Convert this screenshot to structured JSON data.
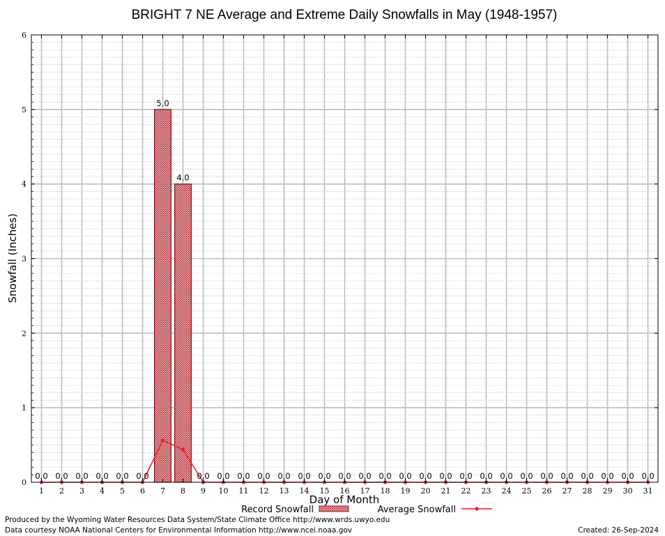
{
  "chart_data": {
    "type": "bar",
    "title": "BRIGHT 7 NE Average and Extreme Daily Snowfalls in May (1948-1957)",
    "xlabel": "Day of Month",
    "ylabel": "Snowfall (Inches)",
    "ylim": [
      0,
      6
    ],
    "y_major_step": 1,
    "y_minor_step": 0.1,
    "grid": true,
    "legend_position": "bottom",
    "categories": [
      "1",
      "2",
      "3",
      "4",
      "5",
      "6",
      "7",
      "8",
      "9",
      "10",
      "11",
      "12",
      "13",
      "14",
      "15",
      "16",
      "17",
      "18",
      "19",
      "20",
      "21",
      "22",
      "23",
      "24",
      "25",
      "26",
      "27",
      "28",
      "29",
      "30",
      "31"
    ],
    "series": [
      {
        "name": "Record Snowfall",
        "type": "bar",
        "color": "#c0282d",
        "values": [
          0,
          0,
          0,
          0,
          0,
          0,
          5.0,
          4.0,
          0,
          0,
          0,
          0,
          0,
          0,
          0,
          0,
          0,
          0,
          0,
          0,
          0,
          0,
          0,
          0,
          0,
          0,
          0,
          0,
          0,
          0,
          0
        ],
        "labels": [
          "0.0",
          "0.0",
          "0.0",
          "0.0",
          "0.0",
          "0.0",
          "5.0",
          "4.0",
          "0.0",
          "0.0",
          "0.0",
          "0.0",
          "0.0",
          "0.0",
          "0.0",
          "0.0",
          "0.0",
          "0.0",
          "0.0",
          "0.0",
          "0.0",
          "0.0",
          "0.0",
          "0.0",
          "0.0",
          "0.0",
          "0.0",
          "0.0",
          "0.0",
          "0.0",
          "0.0"
        ]
      },
      {
        "name": "Average Snowfall",
        "type": "line",
        "color": "#e8202a",
        "values": [
          0,
          0,
          0,
          0,
          0,
          0,
          0.56,
          0.44,
          0,
          0,
          0,
          0,
          0,
          0,
          0,
          0,
          0,
          0,
          0,
          0,
          0,
          0,
          0,
          0,
          0,
          0,
          0,
          0,
          0,
          0,
          0
        ]
      }
    ]
  },
  "footer": {
    "produced_by": "Produced by the Wyoming Water Resources Data System/State Climate Office http://www.wrds.uwyo.edu",
    "data_courtesy": "Data courtesy NOAA National Centers for Environmental Information http://www.ncei.noaa.gov",
    "created": "Created:  26-Sep-2024"
  }
}
